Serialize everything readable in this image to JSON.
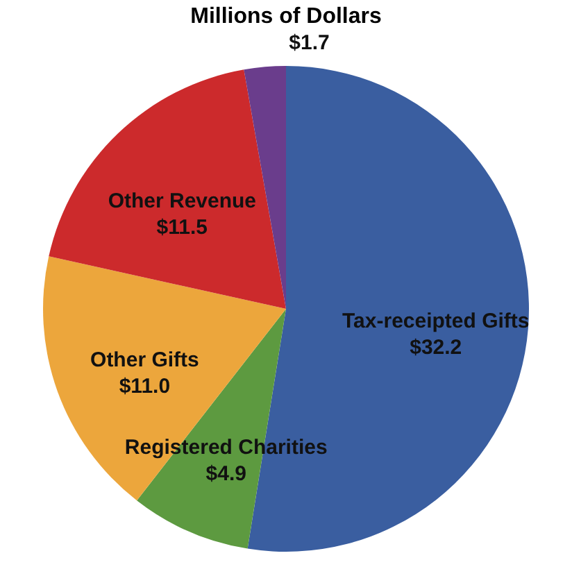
{
  "chart_data": {
    "type": "pie",
    "title": "Millions of Dollars",
    "categories": [
      "Tax-receipted Gifts",
      "Registered Charities",
      "Other Gifts",
      "Other Revenue",
      null
    ],
    "values": [
      32.2,
      4.9,
      11.0,
      11.5,
      1.7
    ],
    "value_labels": [
      "$32.2",
      "$4.9",
      "$11.0",
      "$11.5",
      "$1.7"
    ],
    "colors": [
      "#3a5ea0",
      "#5d9a40",
      "#eca63c",
      "#cc2a2c",
      "#6a3d8c"
    ],
    "legend": false
  }
}
